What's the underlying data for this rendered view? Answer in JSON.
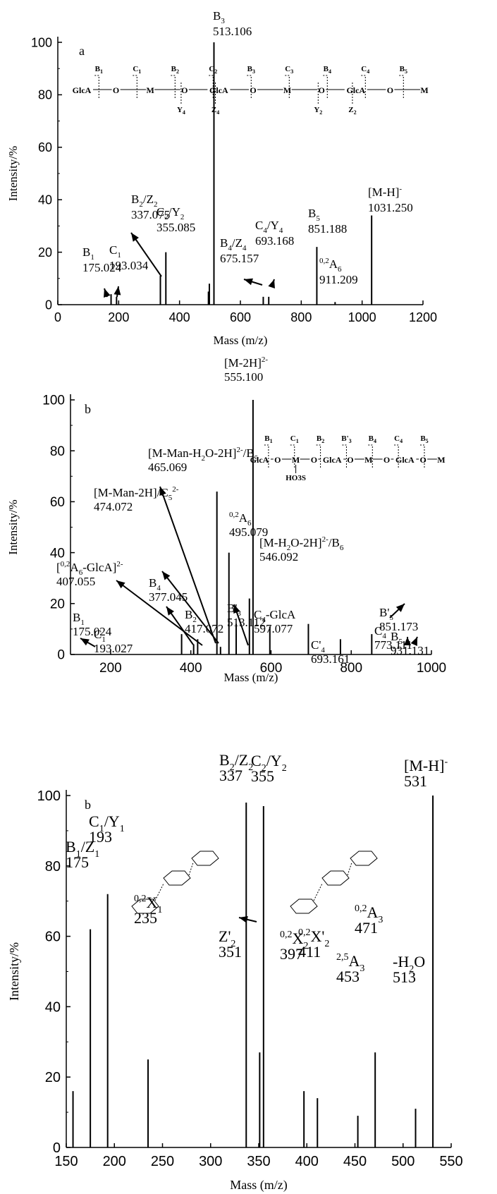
{
  "chart_data": [
    {
      "type": "bar",
      "panel_label": "a",
      "xlabel": "Mass (m/z)",
      "ylabel": "Intensity/%",
      "xlim": [
        0,
        1200
      ],
      "ylim": [
        0,
        100
      ],
      "xticks": [
        "0",
        "200",
        "400",
        "600",
        "800",
        "1000",
        "1200"
      ],
      "yticks": [
        "0",
        "20",
        "40",
        "60",
        "80",
        "100"
      ],
      "peaks": [
        {
          "x": 175.024,
          "y": 4
        },
        {
          "x": 193.034,
          "y": 3
        },
        {
          "x": 337.075,
          "y": 11
        },
        {
          "x": 355.085,
          "y": 20
        },
        {
          "x": 495,
          "y": 5
        },
        {
          "x": 498,
          "y": 8
        },
        {
          "x": 513.106,
          "y": 100
        },
        {
          "x": 675.157,
          "y": 3
        },
        {
          "x": 693.168,
          "y": 3
        },
        {
          "x": 851.188,
          "y": 22
        },
        {
          "x": 911.209,
          "y": 1
        },
        {
          "x": 1031.25,
          "y": 34
        }
      ],
      "annotations": [
        {
          "label": "B",
          "sub": "3",
          "value": "513.106"
        },
        {
          "label": "[M-H]",
          "sup": "-",
          "value": "1031.250"
        },
        {
          "label": "B",
          "sub": "2",
          "label2": "/Z",
          "sub2": "2",
          "value": "337.075"
        },
        {
          "label": "C",
          "sub": "2",
          "label2": "/Y",
          "sub2": "2",
          "value": "355.085"
        },
        {
          "label": "C",
          "sub": "4",
          "label2": "/Y",
          "sub2": "4",
          "value": "693.168"
        },
        {
          "label": "B",
          "sub": "5",
          "value": "851.188"
        },
        {
          "label": "B",
          "sub": "4",
          "label2": "/Z",
          "sub2": "4",
          "value": "675.157"
        },
        {
          "label": "B",
          "sub": "1",
          "value": "175.024"
        },
        {
          "label": "C",
          "sub": "1",
          "value": "193.034"
        },
        {
          "pre": "0,2",
          "label": "A",
          "sub": "6",
          "value": "911.209"
        }
      ],
      "structure": {
        "residues": [
          "GlcA",
          "O",
          "M",
          "O",
          "GlcA",
          "O",
          "M",
          "O",
          "GlcA",
          "O",
          "M"
        ],
        "top_labels": [
          "B1",
          "C1",
          "B2",
          "C2",
          "B3",
          "C3",
          "B4",
          "C4",
          "B5"
        ],
        "bottom_labels": [
          "Y4",
          "Z4",
          "Y2",
          "Z2"
        ]
      }
    },
    {
      "type": "bar",
      "panel_label": "b",
      "xlabel": "Mass (m/z)",
      "ylabel": "Intensity/%",
      "xlim": [
        100,
        1000
      ],
      "ylim": [
        0,
        100
      ],
      "xticks": [
        "200",
        "400",
        "600",
        "800",
        "1000"
      ],
      "yticks": [
        "0",
        "20",
        "40",
        "60",
        "80",
        "100"
      ],
      "peaks": [
        {
          "x": 377.045,
          "y": 8
        },
        {
          "x": 407.055,
          "y": 4
        },
        {
          "x": 417.072,
          "y": 6
        },
        {
          "x": 465.069,
          "y": 64
        },
        {
          "x": 474.072,
          "y": 3
        },
        {
          "x": 495.079,
          "y": 40
        },
        {
          "x": 513.112,
          "y": 12
        },
        {
          "x": 546.092,
          "y": 22
        },
        {
          "x": 555.1,
          "y": 100
        },
        {
          "x": 597.077,
          "y": 11
        },
        {
          "x": 693.161,
          "y": 12
        },
        {
          "x": 773.111,
          "y": 6
        },
        {
          "x": 851.173,
          "y": 8
        }
      ],
      "annotations": [
        {
          "label": "[M-2H]",
          "sup": "2-",
          "value": "555.100"
        },
        {
          "label": "[M-Man-H",
          "sub": "2",
          "label2": "O-2H]",
          "sup": "2-",
          "label3": "/B",
          "sub3": "5",
          "value": "465.069"
        },
        {
          "label": "[M-Man-2H]",
          "sup": "2-",
          "label2": "/C",
          "sub2": "5",
          "value": "474.072"
        },
        {
          "pre": "0,2",
          "label": "A",
          "sub": "6",
          "value": "495.079"
        },
        {
          "label": "[M-H",
          "sub": "2",
          "label2": "O-2H]",
          "sup": "2-",
          "label3": "/B",
          "sub3": "6",
          "value": "546.092"
        },
        {
          "label": "[",
          "pre": "0,2",
          "label2": "A",
          "sub": "6",
          "label3": "-GlcA]",
          "sup": "2-",
          "value": "407.055"
        },
        {
          "label": "B",
          "sub": "4",
          "value": "377.045"
        },
        {
          "label": "B",
          "sub": "2",
          "value": "417.072"
        },
        {
          "label": "B'",
          "sub": "3",
          "value": "513.112"
        },
        {
          "label": "C",
          "sub": "4",
          "label2": "-GlcA",
          "value": "597.077"
        },
        {
          "label": "B",
          "sub": "1",
          "value": "175.024"
        },
        {
          "label": "C",
          "sub": "1",
          "value": "193.027"
        },
        {
          "label": "C'",
          "sub": "4",
          "value": "693.161"
        },
        {
          "label": "C",
          "sub": "4",
          "value": "773.111"
        },
        {
          "label": "B'",
          "sub": "5",
          "value": "851.173"
        },
        {
          "label": "B",
          "sub": "5",
          "value": "931.131"
        }
      ],
      "structure": {
        "residues": [
          "GlcA",
          "O",
          "M",
          "O",
          "GlcA",
          "O",
          "M",
          "O",
          "GlcA",
          "O",
          "M"
        ],
        "top_labels": [
          "B1",
          "C1",
          "B2",
          "B'3",
          "B4",
          "C4",
          "B5"
        ],
        "substituent": "HO3S"
      }
    },
    {
      "type": "bar",
      "panel_label": "b",
      "xlabel": "Mass (m/z)",
      "ylabel": "Intensity/%",
      "xlim": [
        150,
        550
      ],
      "ylim": [
        0,
        100
      ],
      "xticks": [
        "150",
        "200",
        "250",
        "300",
        "350",
        "400",
        "450",
        "500",
        "550"
      ],
      "yticks": [
        "0",
        "20",
        "40",
        "60",
        "80",
        "100"
      ],
      "peaks": [
        {
          "x": 157,
          "y": 16
        },
        {
          "x": 175,
          "y": 62
        },
        {
          "x": 193,
          "y": 72
        },
        {
          "x": 235,
          "y": 25
        },
        {
          "x": 337,
          "y": 98
        },
        {
          "x": 351,
          "y": 27
        },
        {
          "x": 355,
          "y": 97
        },
        {
          "x": 397,
          "y": 16
        },
        {
          "x": 411,
          "y": 14
        },
        {
          "x": 453,
          "y": 9
        },
        {
          "x": 471,
          "y": 27
        },
        {
          "x": 513,
          "y": 11
        },
        {
          "x": 531,
          "y": 100
        }
      ],
      "annotations": [
        {
          "label": "B",
          "sub": "2",
          "label2": "/Z",
          "sub2": "2",
          "value": "337"
        },
        {
          "label": "C",
          "sub": "2",
          "label2": "/Y",
          "sub2": "2",
          "value": "355"
        },
        {
          "label": "[M-H]",
          "sup": "-",
          "value": "531"
        },
        {
          "label": "C",
          "sub": "1",
          "label2": "/Y",
          "sub2": "1",
          "value": "193"
        },
        {
          "label": "B",
          "sub": "1",
          "label2": "/Z",
          "sub2": "1",
          "value": "175"
        },
        {
          "pre": "0,2",
          "label": "X",
          "sub": "1",
          "value": "235"
        },
        {
          "label": "Z'",
          "sub": "2",
          "value": "351"
        },
        {
          "pre": "0,2",
          "label": "X",
          "sub": "2",
          "value": "397"
        },
        {
          "pre": "0,2",
          "label": "X'",
          "sub": "2",
          "value": "411"
        },
        {
          "pre": "2,5",
          "label": "A",
          "sub": "3",
          "value": "453"
        },
        {
          "pre": "0,2",
          "label": "A",
          "sub": "3",
          "value": "471"
        },
        {
          "label": "-H",
          "sub": "2",
          "label2": "O",
          "value": "513"
        }
      ]
    }
  ]
}
